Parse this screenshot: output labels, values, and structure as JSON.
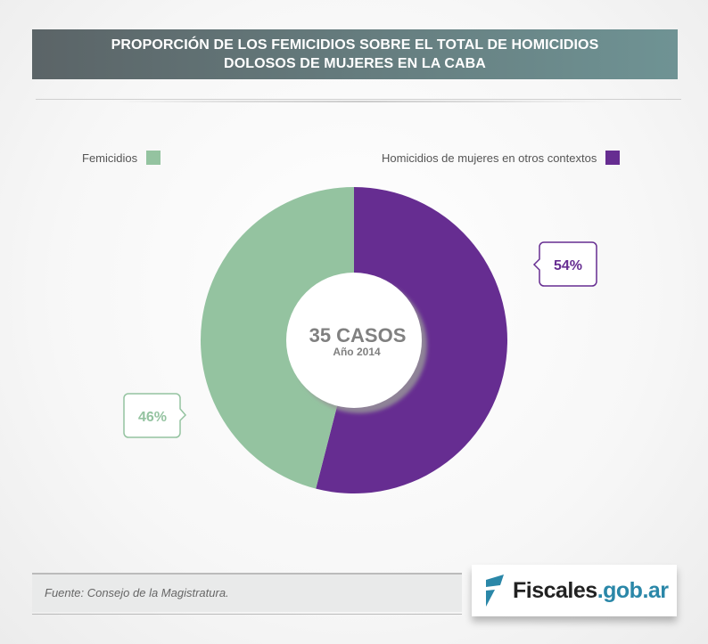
{
  "title_line1": "PROPORCIÓN DE LOS FEMICIDIOS SOBRE EL TOTAL DE HOMICIDIOS",
  "title_line2": "DOLOSOS DE MUJERES EN LA CABA",
  "chart_data": {
    "type": "pie",
    "donut": true,
    "categories": [
      "Homicidios de mujeres en otros contextos",
      "Femicidios"
    ],
    "values": [
      54,
      46
    ],
    "labels": [
      "54%",
      "46%"
    ],
    "colors": [
      "#662d91",
      "#94c3a0"
    ],
    "legend": [
      "Femicidios",
      "Homicidios de mujeres en otros contextos"
    ],
    "legend_placement": "top",
    "center_label": "35 CASOS",
    "center_sublabel": "Año 2014"
  },
  "source": "Fuente: Consejo de la Magistratura.",
  "logo": {
    "main": "Fiscales",
    "suffix": ".gob.ar"
  }
}
